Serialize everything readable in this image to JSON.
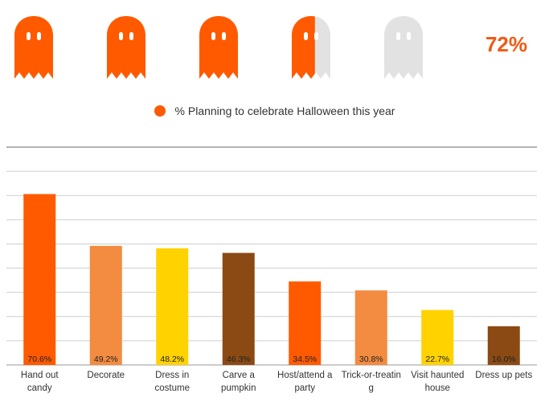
{
  "summary": {
    "percent_label": "72%",
    "fraction": 0.72,
    "ghost_fill_color": "#ff5a00",
    "ghost_empty_color": "#e2e2e2",
    "accent_color": "#f05a14"
  },
  "legend": {
    "label": "% Planning to celebrate Halloween this year"
  },
  "chart_data": {
    "type": "bar",
    "categories": [
      [
        "Hand out",
        "candy"
      ],
      [
        "Decorate"
      ],
      [
        "Dress in",
        "costume"
      ],
      [
        "Carve a",
        "pumpkin"
      ],
      [
        "Host/attend a",
        "party"
      ],
      [
        "Trick-or-treatin",
        "g"
      ],
      [
        "Visit haunted",
        "house"
      ],
      [
        "Dress up pets"
      ]
    ],
    "values": [
      70.6,
      49.2,
      48.2,
      46.3,
      34.5,
      30.8,
      22.7,
      16.0
    ],
    "data_labels": [
      "70.6%",
      "49.2%",
      "48.2%",
      "46.3%",
      "34.5%",
      "30.8%",
      "22.7%",
      "16.0%"
    ],
    "colors": [
      "#ff5a00",
      "#f38b40",
      "#ffd200",
      "#8b4a14",
      "#ff5a00",
      "#f38b40",
      "#ffd200",
      "#8b4a14"
    ],
    "ylim": [
      0,
      90
    ],
    "gridlines": true,
    "title": "",
    "xlabel": "",
    "ylabel": ""
  }
}
